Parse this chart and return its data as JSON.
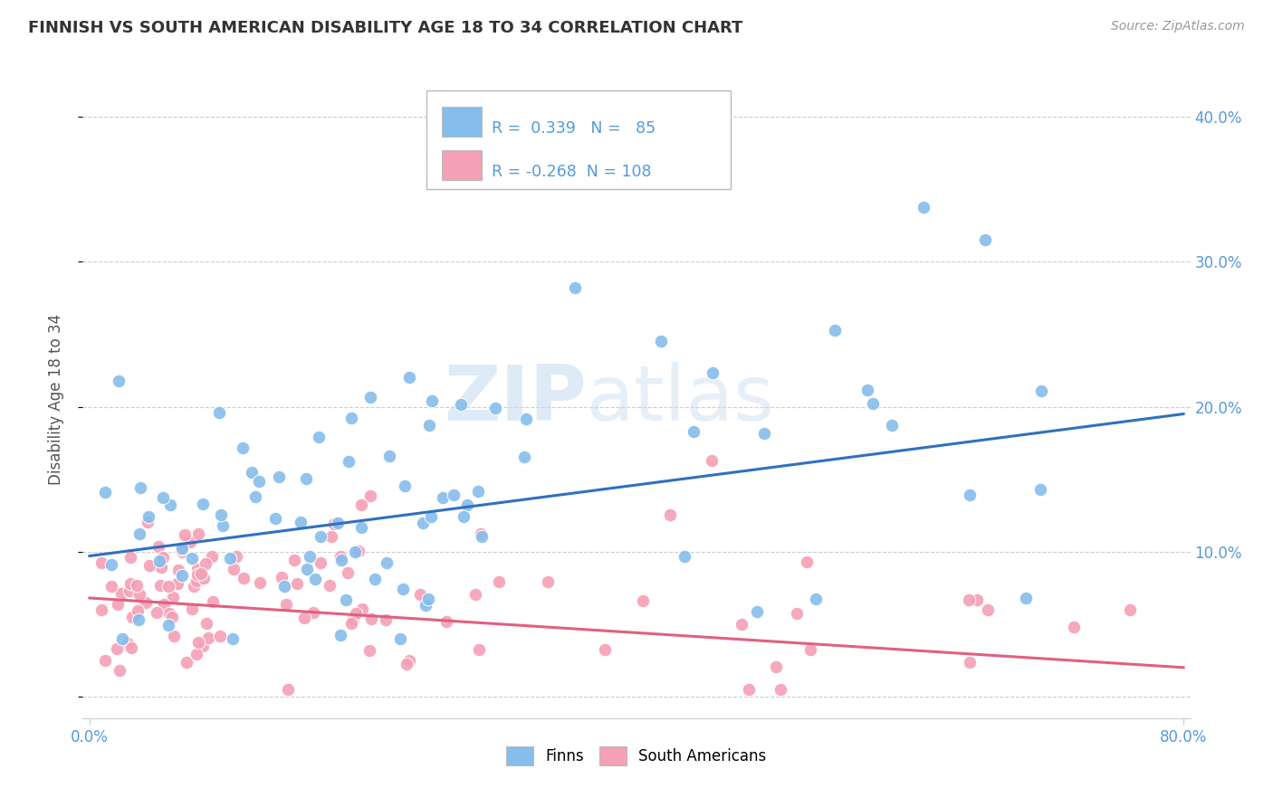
{
  "title": "FINNISH VS SOUTH AMERICAN DISABILITY AGE 18 TO 34 CORRELATION CHART",
  "source": "Source: ZipAtlas.com",
  "ylabel": "Disability Age 18 to 34",
  "xlim": [
    0.0,
    0.8
  ],
  "ylim": [
    -0.01,
    0.42
  ],
  "finns_R": 0.339,
  "finns_N": 85,
  "sa_R": -0.268,
  "sa_N": 108,
  "finns_color": "#85BDEC",
  "sa_color": "#F5A0B5",
  "finns_line_color": "#3070C0",
  "sa_line_color": "#E06080",
  "legend_finns": "Finns",
  "legend_sa": "South Americans",
  "background_color": "#FFFFFF",
  "grid_color": "#CCCCCC",
  "title_color": "#333333",
  "tick_color": "#5599DD",
  "finns_line_start_y": 0.097,
  "finns_line_end_y": 0.195,
  "sa_line_start_y": 0.068,
  "sa_line_end_y": 0.02,
  "watermark_zip": "ZIP",
  "watermark_atlas": "atlas"
}
